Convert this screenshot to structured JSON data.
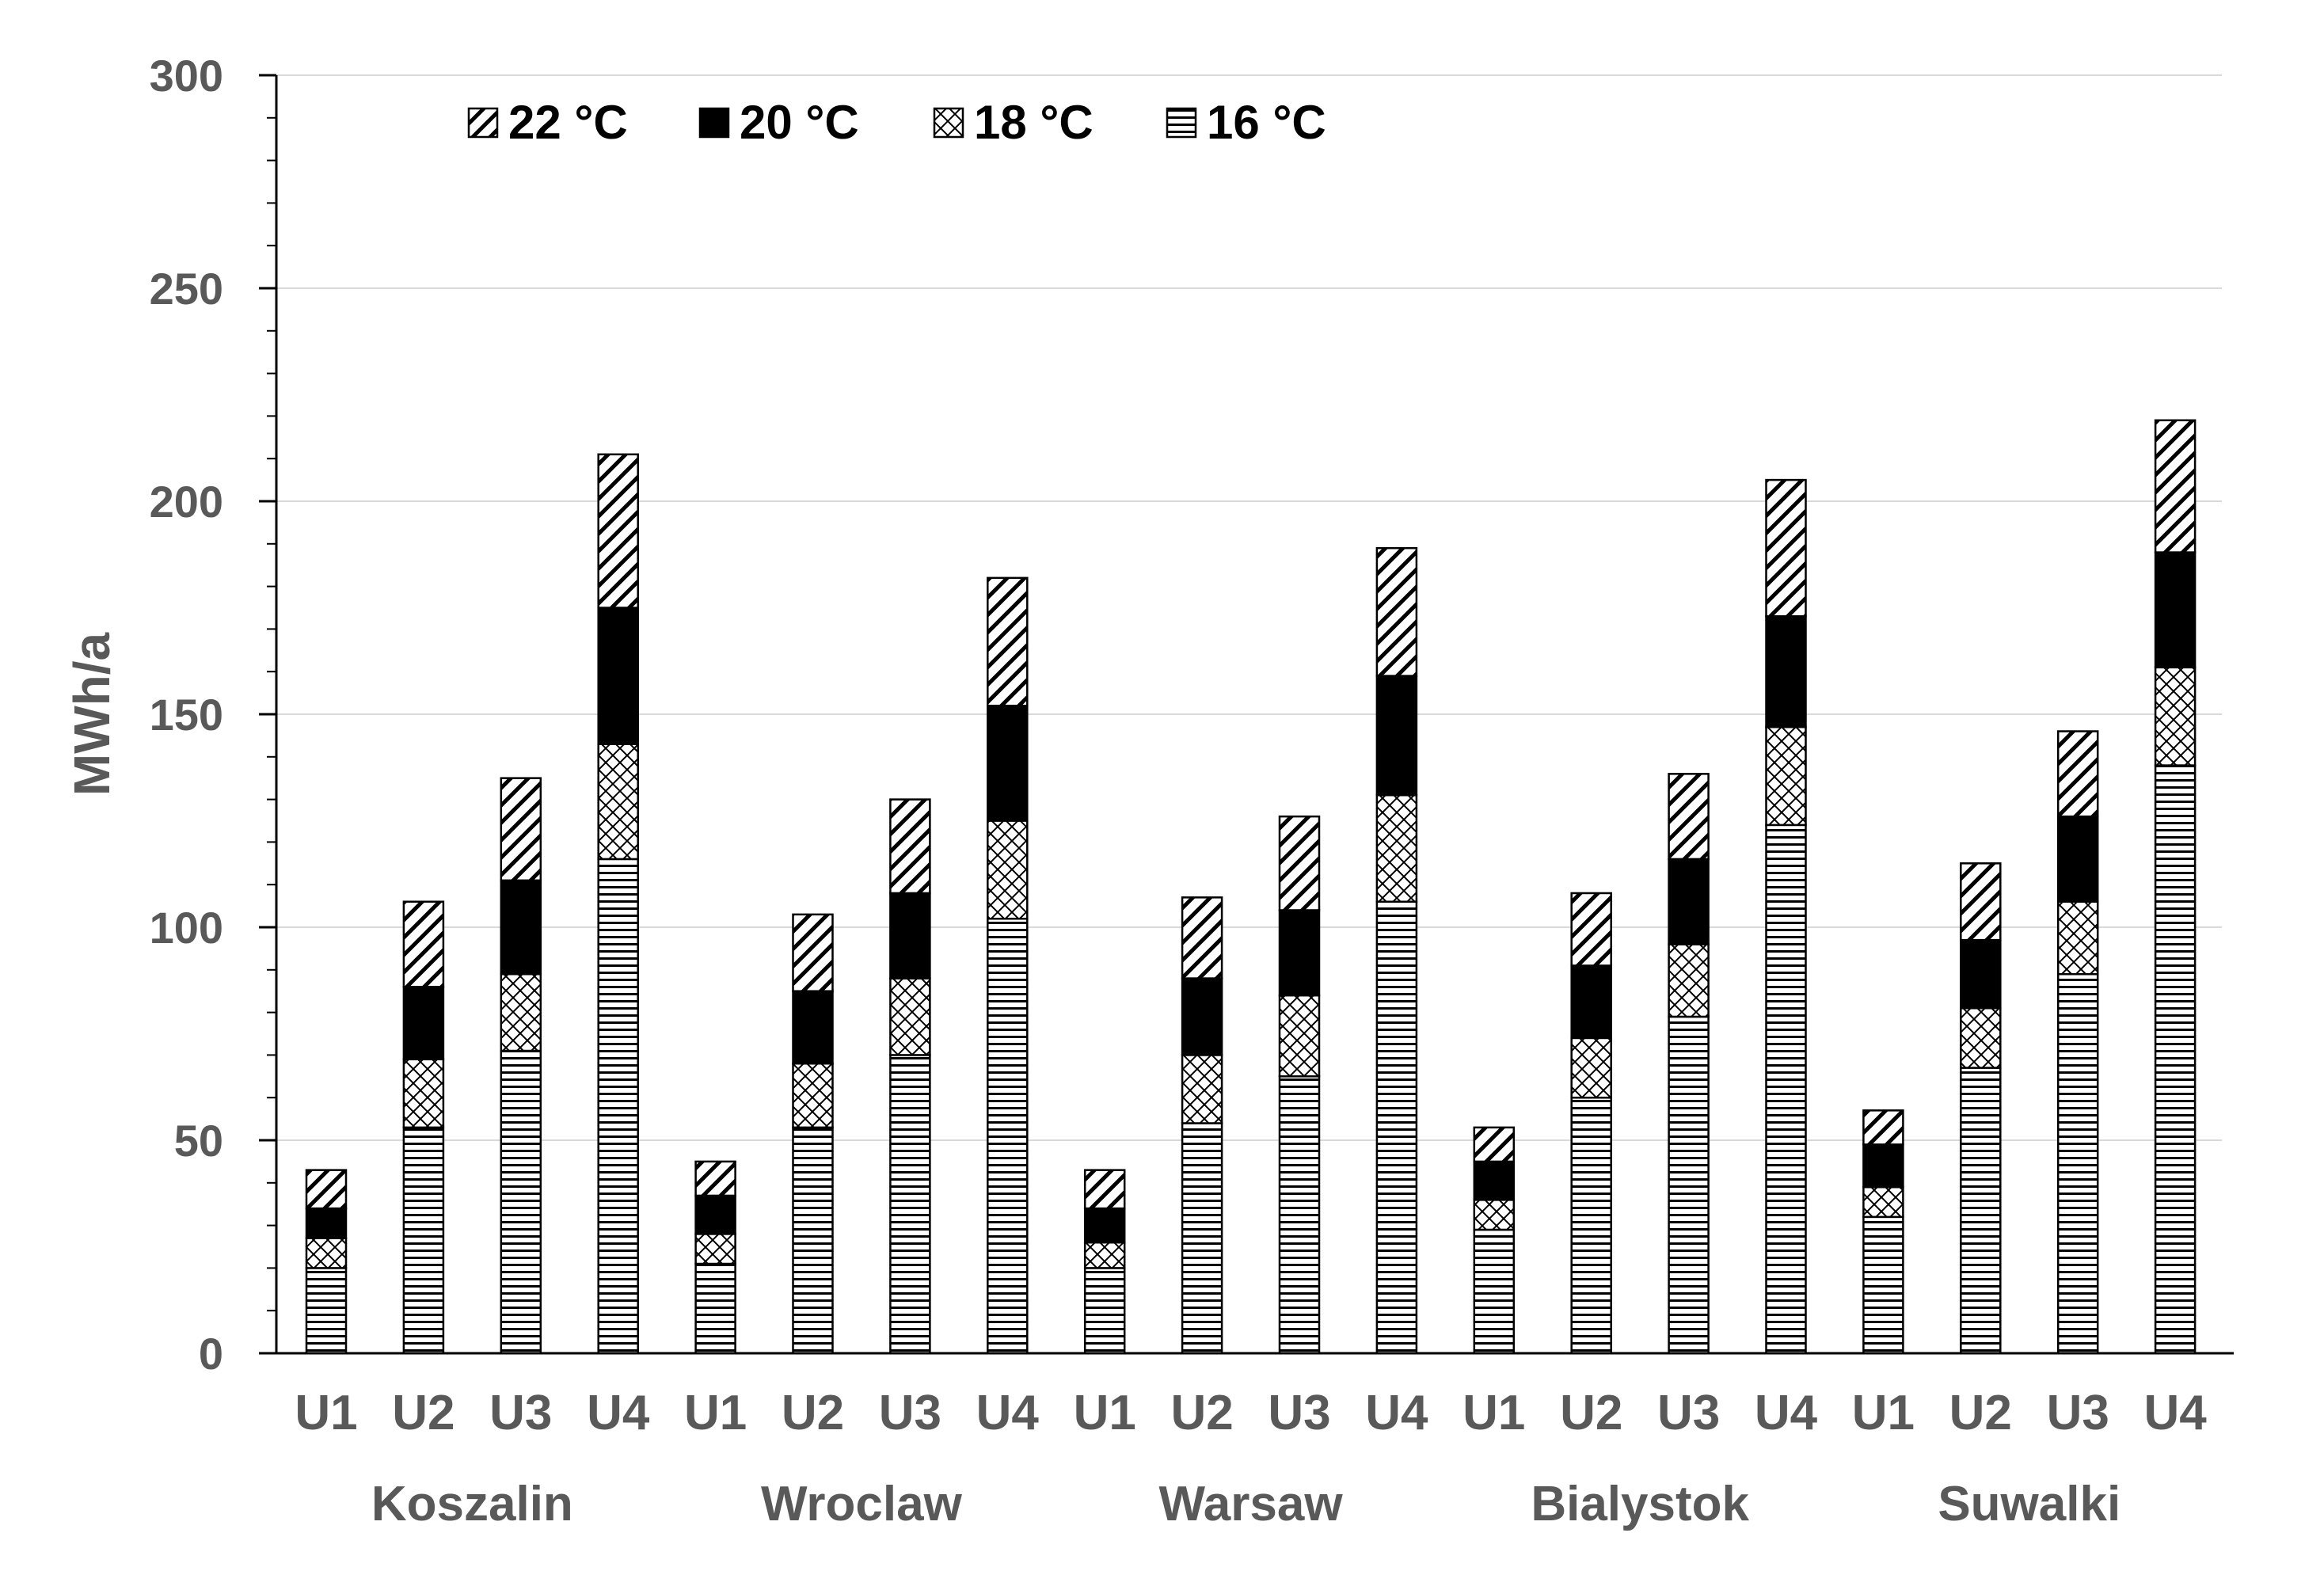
{
  "chart_data": {
    "type": "bar",
    "stacked": true,
    "ylabel": "MWh/a",
    "ylim": [
      0,
      300
    ],
    "yticks": [
      0,
      50,
      100,
      150,
      200,
      250,
      300
    ],
    "grid": "horizontal",
    "legend_position": "top-left",
    "groups": [
      "Koszalin",
      "Wroclaw",
      "Warsaw",
      "Bialystok",
      "Suwalki"
    ],
    "subcategories": [
      "U1",
      "U2",
      "U3",
      "U4"
    ],
    "series": [
      {
        "name": "16 °C",
        "pattern": "horizontal-lines",
        "totals": [
          20,
          53,
          71,
          116,
          21,
          53,
          70,
          102,
          20,
          54,
          65,
          106,
          29,
          60,
          79,
          124,
          32,
          67,
          89,
          138
        ]
      },
      {
        "name": "18 °C",
        "pattern": "crosshatch",
        "totals": [
          27,
          69,
          89,
          143,
          28,
          68,
          88,
          125,
          26,
          70,
          84,
          131,
          36,
          74,
          96,
          147,
          39,
          81,
          106,
          161
        ]
      },
      {
        "name": "20 °C",
        "pattern": "solid-black",
        "totals": [
          34,
          86,
          111,
          175,
          37,
          85,
          108,
          152,
          34,
          88,
          104,
          159,
          45,
          91,
          116,
          173,
          49,
          97,
          126,
          188
        ]
      },
      {
        "name": "22 °C",
        "pattern": "diagonal-lines",
        "totals": [
          43,
          106,
          135,
          211,
          45,
          103,
          130,
          182,
          43,
          107,
          126,
          189,
          53,
          108,
          136,
          205,
          57,
          115,
          146,
          219
        ]
      }
    ],
    "legend_order": [
      "22 °C",
      "20 °C",
      "18 °C",
      "16 °C"
    ],
    "colors": {
      "axis": "#000000",
      "grid": "#d9d9d9",
      "label": "#595959",
      "bar_stroke": "#000000"
    }
  }
}
